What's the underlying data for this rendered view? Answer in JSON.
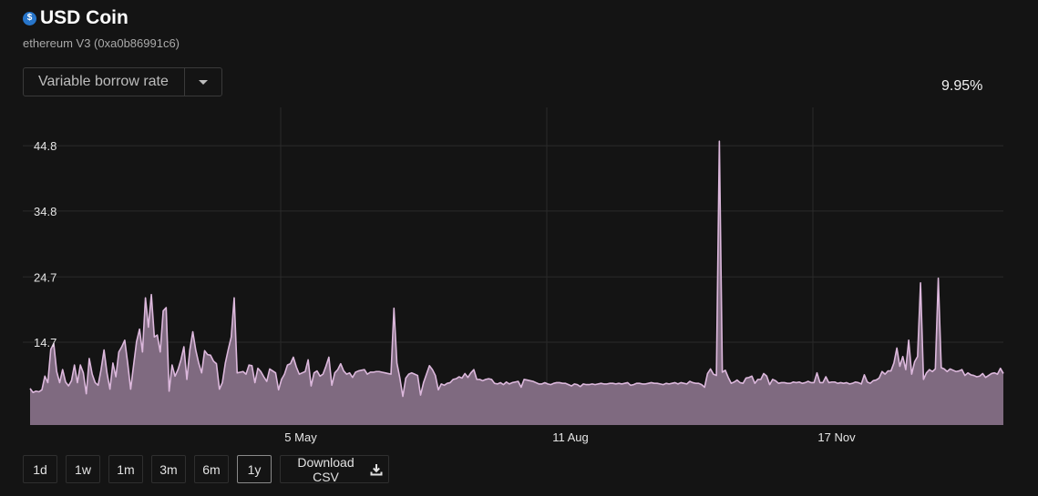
{
  "header": {
    "icon": "usdc-coin-icon",
    "icon_glyph": "$",
    "title": "USD Coin",
    "subtitle": "ethereum V3 (0xa0b86991c6)"
  },
  "metric_select": {
    "selected": "Variable borrow rate"
  },
  "current_value": "9.95%",
  "range_buttons": [
    {
      "label": "1d",
      "active": false
    },
    {
      "label": "1w",
      "active": false
    },
    {
      "label": "1m",
      "active": false
    },
    {
      "label": "3m",
      "active": false
    },
    {
      "label": "6m",
      "active": false
    },
    {
      "label": "1y",
      "active": true
    }
  ],
  "download_label": "Download CSV",
  "colors": {
    "fill": "#7f6a80",
    "line": "#dcb8dc",
    "grid": "#2a2a2a",
    "background": "#141414"
  },
  "chart_data": {
    "type": "area",
    "title": "",
    "xlabel": "",
    "ylabel": "",
    "grid": true,
    "y_ticks": [
      "14.7",
      "24.7",
      "34.8",
      "44.8"
    ],
    "x_ticks": [
      "5 May",
      "11 Aug",
      "17 Nov"
    ],
    "series": [
      {
        "values": [
          7.6,
          7,
          7.2,
          7.1,
          7.4,
          9.5,
          8.5,
          13.6,
          14.5,
          10.2,
          8.5,
          10.5,
          8.6,
          8,
          8.8,
          11.2,
          8.5,
          11.2,
          10,
          6.8,
          12.2,
          9.8,
          8.5,
          8.1,
          10.5,
          13.5,
          10,
          7.5,
          11.5,
          9.4,
          13.2,
          14,
          15,
          11.5,
          7.5,
          11.2,
          14.8,
          16.7,
          13.2,
          21.5,
          17,
          22,
          15.5,
          15.8,
          13.2,
          19.5,
          20,
          7.2,
          11.2,
          9.5,
          10.5,
          12,
          14,
          9,
          13.5,
          16.3,
          13.5,
          11.5,
          10,
          13.4,
          12.8,
          12.7,
          11.8,
          11.4,
          7.5,
          8.5,
          11.5,
          13.6,
          15.5,
          21.5,
          10,
          10.1,
          10.2,
          9.8,
          11.2,
          11.1,
          8.5,
          10.7,
          10.2,
          9.4,
          8.7,
          10.6,
          10.3,
          10,
          7.4,
          9,
          9.8,
          11.2,
          11.4,
          12.4,
          10.9,
          9.8,
          10,
          10.2,
          12,
          8,
          10,
          10.3,
          9.5,
          9.8,
          11,
          12.4,
          8.1,
          10,
          10.5,
          11.4,
          10.3,
          9.8,
          10,
          9.3,
          10.1,
          10.3,
          10.4,
          10.5,
          9.8,
          10.1,
          10.1,
          10.2,
          10.2,
          10.1,
          10,
          9.9,
          9.8,
          9.8,
          11.5,
          9.2,
          6.4,
          9.2,
          9.8,
          10,
          9.8,
          9.6,
          6.6,
          8.5,
          9.8,
          11.1,
          10.5,
          9.6,
          7.4,
          8.3,
          8.1,
          8.4,
          8.5,
          9,
          9.1,
          9.4,
          9.2,
          9.9,
          9.3,
          10,
          10.5,
          9,
          9,
          8.8,
          9,
          9.1,
          9,
          8.4,
          8.3,
          8.5,
          8.2,
          8.6,
          8.3,
          8.5,
          8.6,
          8.7,
          7.8,
          9,
          8.9,
          8.8,
          8.7,
          8.5,
          8.3,
          8.3,
          8.5,
          8.3,
          8.2,
          8.4,
          8.5,
          8.5,
          8.4,
          8.4,
          8.2,
          8,
          8.3,
          8.2,
          7.9,
          8.3,
          8.2,
          8.2,
          8.3,
          8.2,
          8.3,
          8.4,
          8.3,
          8.3,
          8.4,
          8.4,
          8.3,
          8.4,
          8.3,
          8.4,
          8.5,
          8.1,
          8.2,
          8.4,
          8.4,
          8.3,
          8.3,
          8.4,
          8.5,
          8.4,
          8.4,
          8.3,
          8.2,
          8.4,
          8.3,
          8.4,
          8.5,
          8.3,
          8.5,
          8.4,
          8.3,
          8.7,
          8.5,
          8.4,
          8.4,
          8.2,
          7.8,
          9.9,
          10.6,
          9.8,
          9.6,
          11,
          10.1,
          10.4,
          9.3,
          8.4,
          8.6,
          8.9,
          8.5,
          8.4,
          9.2,
          9.3,
          9.5,
          8.4,
          9,
          9,
          9.9,
          9.5,
          8.2,
          9,
          8.8,
          8.4,
          8.5,
          8.5,
          8.4,
          8.4,
          8.6,
          8.5,
          8.6,
          8.4,
          8.5,
          8.7,
          8.5,
          8.5,
          10,
          8.5,
          8.5,
          9.4,
          8.5,
          8.6,
          8.6,
          8.4,
          8.5,
          8.4,
          8.5,
          8.3,
          8.4,
          8.6,
          8.5,
          8.3,
          9.7,
          8.6,
          8.4,
          8.8,
          8.9,
          9.2,
          10.2,
          9.8,
          10.3,
          10.3,
          11.5,
          13.8,
          11,
          12.5,
          10.5,
          15,
          9.8,
          11.7,
          12.5,
          12,
          9,
          10,
          10.5,
          10.2,
          10.6,
          10.6,
          10.8,
          10.6,
          10.2,
          10.6,
          10.4,
          10.2,
          10.3,
          10.5,
          9.6,
          10,
          9.7,
          9.6,
          9.4,
          9.5,
          9.9,
          9.3,
          9.6,
          9.9,
          10,
          9.8,
          10.7,
          9.9
        ],
        "spikes": [
          {
            "index": 123,
            "value": 19.9
          },
          {
            "index": 233,
            "value": 45.5
          },
          {
            "index": 301,
            "value": 23.8
          },
          {
            "index": 307,
            "value": 24.5
          }
        ]
      }
    ]
  }
}
